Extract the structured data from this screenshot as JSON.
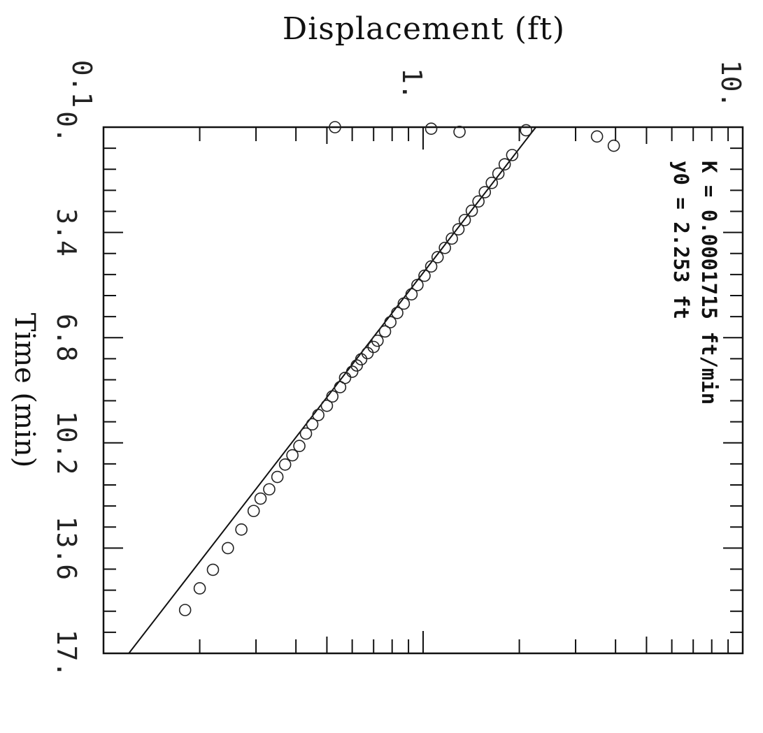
{
  "chart_data": {
    "type": "scatter",
    "title": "Displacement (ft)",
    "xlabel": "Time (min)",
    "ylabel": "",
    "x_range": [
      0,
      17
    ],
    "y_range": [
      0.1,
      10
    ],
    "y_scale": "log",
    "x_ticks": [
      "0.",
      "3.4",
      "6.8",
      "10.2",
      "13.6",
      "17."
    ],
    "y_ticks": [
      "0.1",
      "1.",
      "10."
    ],
    "grid": false,
    "annotations": [
      "K = 0.0001715 ft/min",
      "y0 = 2.253 ft"
    ],
    "series": [
      {
        "type": "scatter",
        "marker": "open-circle",
        "x": [
          0.0,
          0.05,
          0.1,
          0.15,
          0.3,
          0.6,
          0.9,
          1.2,
          1.5,
          1.8,
          2.1,
          2.4,
          2.7,
          3.0,
          3.3,
          3.6,
          3.9,
          4.2,
          4.5,
          4.8,
          5.1,
          5.4,
          5.7,
          6.0,
          6.3,
          6.6,
          6.9,
          7.1,
          7.3,
          7.5,
          7.7,
          7.9,
          8.1,
          8.4,
          8.7,
          9.0,
          9.3,
          9.6,
          9.9,
          10.3,
          10.6,
          10.9,
          11.3,
          11.7,
          12.0,
          12.4,
          13.0,
          13.6,
          14.3,
          14.9,
          15.6
        ],
        "y": [
          0.53,
          1.06,
          2.1,
          1.3,
          3.5,
          3.95,
          1.9,
          1.8,
          1.72,
          1.64,
          1.56,
          1.49,
          1.42,
          1.35,
          1.29,
          1.23,
          1.17,
          1.11,
          1.06,
          1.01,
          0.96,
          0.92,
          0.87,
          0.83,
          0.79,
          0.76,
          0.72,
          0.7,
          0.67,
          0.64,
          0.62,
          0.6,
          0.57,
          0.55,
          0.52,
          0.5,
          0.47,
          0.45,
          0.43,
          0.41,
          0.39,
          0.37,
          0.35,
          0.33,
          0.31,
          0.295,
          0.27,
          0.245,
          0.22,
          0.2,
          0.18
        ]
      },
      {
        "type": "line",
        "x": [
          0.0,
          17.0
        ],
        "y": [
          2.253,
          0.12
        ]
      }
    ]
  }
}
